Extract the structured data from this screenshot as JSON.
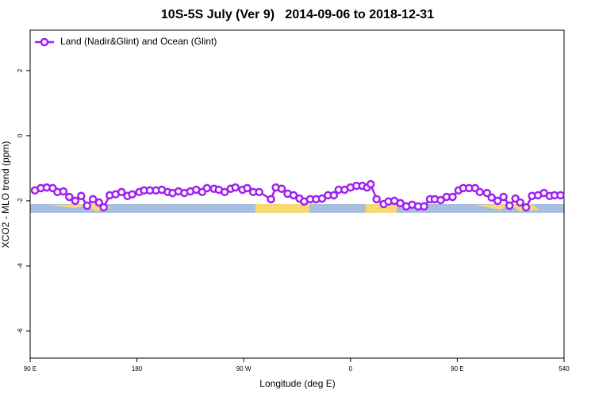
{
  "chart_data": {
    "type": "line",
    "title": "10S-5S July (Ver 9)   2014-09-06 to 2018-12-31",
    "x_label": "Longitude (deg E)",
    "y_label": "XCO2 - MLO trend (ppm)",
    "legend_position": "top-left",
    "xlim": [
      90,
      540
    ],
    "xticks": [
      {
        "value": 90,
        "label": "90 E"
      },
      180,
      {
        "value": 270,
        "label": "90 W"
      },
      {
        "value": 360,
        "label": "0"
      },
      {
        "value": 450,
        "label": "90 E"
      },
      540
    ],
    "ylim": [
      -6.83,
      3.24
    ],
    "yticks": [
      2,
      0,
      -2,
      -4,
      -6
    ],
    "series": [
      {
        "name": "Land (Nadir&Glint) and Ocean (Glint)",
        "color": "#a020f0",
        "x": [
          94,
          99,
          104,
          109,
          113,
          118,
          123,
          128,
          133,
          138,
          143,
          148,
          152,
          157,
          162,
          167,
          172,
          176,
          182,
          186,
          191,
          196,
          201,
          206,
          210,
          215,
          220,
          225,
          230,
          235,
          239,
          245,
          249,
          254,
          259,
          263,
          269,
          273,
          278,
          283,
          293,
          297,
          302,
          307,
          312,
          317,
          321,
          326,
          331,
          336,
          341,
          346,
          350,
          355,
          360,
          365,
          370,
          374,
          377,
          382,
          388,
          392,
          397,
          402,
          407,
          412,
          417,
          422,
          427,
          431,
          436,
          441,
          446,
          451,
          455,
          460,
          465,
          469,
          475,
          479,
          484,
          489,
          494,
          499,
          503,
          508,
          513,
          518,
          523,
          528,
          532,
          537
        ],
        "values": [
          -1.68,
          -1.61,
          -1.59,
          -1.61,
          -1.73,
          -1.71,
          -1.88,
          -2.0,
          -1.85,
          -2.15,
          -1.95,
          -2.05,
          -2.2,
          -1.83,
          -1.8,
          -1.73,
          -1.85,
          -1.8,
          -1.73,
          -1.68,
          -1.68,
          -1.68,
          -1.66,
          -1.73,
          -1.76,
          -1.71,
          -1.76,
          -1.71,
          -1.66,
          -1.73,
          -1.61,
          -1.63,
          -1.66,
          -1.73,
          -1.63,
          -1.59,
          -1.66,
          -1.61,
          -1.73,
          -1.73,
          -1.95,
          -1.59,
          -1.63,
          -1.78,
          -1.83,
          -1.93,
          -2.02,
          -1.95,
          -1.95,
          -1.93,
          -1.83,
          -1.83,
          -1.66,
          -1.66,
          -1.59,
          -1.54,
          -1.54,
          -1.59,
          -1.49,
          -1.95,
          -2.1,
          -2.02,
          -2.0,
          -2.07,
          -2.17,
          -2.12,
          -2.17,
          -2.17,
          -1.95,
          -1.95,
          -1.98,
          -1.88,
          -1.88,
          -1.68,
          -1.61,
          -1.61,
          -1.61,
          -1.73,
          -1.76,
          -1.9,
          -2.0,
          -1.88,
          -2.15,
          -1.93,
          -2.05,
          -2.2,
          -1.85,
          -1.83,
          -1.76,
          -1.85,
          -1.83,
          -1.83
        ]
      }
    ]
  }
}
